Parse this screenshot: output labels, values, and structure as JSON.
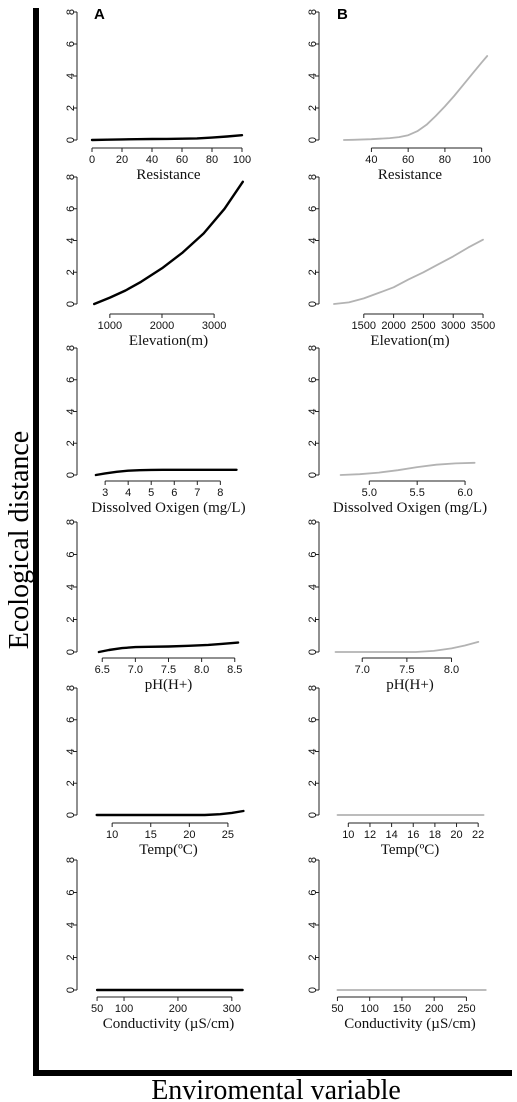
{
  "figure": {
    "ylabel": "Ecological distance",
    "xlabel": "Enviromental variable",
    "panel_labels": [
      "A",
      "B"
    ]
  },
  "chart_data": [
    {
      "panel": "A",
      "type": "line",
      "xlabel": "Resistance",
      "ylim": [
        0,
        8
      ],
      "yticks": [
        0,
        2,
        4,
        6,
        8
      ],
      "xlim": [
        -2,
        104
      ],
      "xticks": [
        0,
        20,
        40,
        60,
        80,
        100
      ],
      "line_color": "#000000",
      "x": [
        0,
        10,
        20,
        30,
        40,
        50,
        60,
        70,
        80,
        90,
        100
      ],
      "y": [
        0,
        0.02,
        0.04,
        0.05,
        0.06,
        0.07,
        0.08,
        0.1,
        0.15,
        0.22,
        0.3
      ]
    },
    {
      "panel": "B",
      "type": "line",
      "xlabel": "Resistance",
      "ylim": [
        0,
        8
      ],
      "yticks": [
        0,
        2,
        4,
        6,
        8
      ],
      "xlim": [
        18,
        104
      ],
      "xticks": [
        40,
        60,
        80,
        100
      ],
      "line_color": "#b3b3b3",
      "x": [
        25,
        30,
        40,
        50,
        55,
        60,
        65,
        70,
        75,
        80,
        85,
        90,
        95,
        100,
        103
      ],
      "y": [
        0,
        0.01,
        0.05,
        0.12,
        0.18,
        0.3,
        0.55,
        0.95,
        1.5,
        2.1,
        2.75,
        3.45,
        4.15,
        4.85,
        5.25
      ]
    },
    {
      "panel": "A",
      "type": "line",
      "xlabel": "Elevation(m)",
      "ylim": [
        0,
        8
      ],
      "yticks": [
        0,
        2,
        4,
        6,
        8
      ],
      "xlim": [
        600,
        3650
      ],
      "xticks": [
        1000,
        2000,
        3000
      ],
      "line_color": "#000000",
      "x": [
        700,
        1000,
        1300,
        1600,
        2000,
        2400,
        2800,
        3200,
        3550
      ],
      "y": [
        0,
        0.4,
        0.85,
        1.4,
        2.25,
        3.25,
        4.45,
        6.0,
        7.7
      ]
    },
    {
      "panel": "B",
      "type": "line",
      "xlabel": "Elevation(m)",
      "ylim": [
        0,
        8
      ],
      "yticks": [
        0,
        2,
        4,
        6,
        8
      ],
      "xlim": [
        950,
        3600
      ],
      "xticks": [
        1500,
        2000,
        2500,
        3000,
        3500
      ],
      "line_color": "#b3b3b3",
      "x": [
        1000,
        1250,
        1500,
        1750,
        2000,
        2250,
        2500,
        2750,
        3000,
        3250,
        3500
      ],
      "y": [
        0,
        0.1,
        0.35,
        0.7,
        1.05,
        1.55,
        2.0,
        2.5,
        3.0,
        3.55,
        4.05
      ]
    },
    {
      "panel": "A",
      "type": "line",
      "xlabel": "Dissolved Oxigen (mg/L)",
      "ylim": [
        0,
        8
      ],
      "yticks": [
        0,
        2,
        4,
        6,
        8
      ],
      "xlim": [
        2.3,
        9.2
      ],
      "xticks": [
        3,
        4,
        5,
        6,
        7,
        8
      ],
      "line_color": "#000000",
      "x": [
        2.6,
        3,
        3.5,
        4,
        4.5,
        5,
        5.5,
        6,
        7,
        8,
        8.7
      ],
      "y": [
        0,
        0.1,
        0.2,
        0.27,
        0.3,
        0.32,
        0.33,
        0.33,
        0.33,
        0.33,
        0.33
      ]
    },
    {
      "panel": "B",
      "type": "line",
      "xlabel": "Dissolved Oxigen (mg/L)",
      "ylim": [
        0,
        8
      ],
      "yticks": [
        0,
        2,
        4,
        6,
        8
      ],
      "xlim": [
        4.6,
        6.25
      ],
      "xticks": [
        5.0,
        5.5,
        6.0
      ],
      "line_color": "#b3b3b3",
      "x": [
        4.7,
        4.9,
        5.1,
        5.3,
        5.5,
        5.7,
        5.9,
        6.1
      ],
      "y": [
        0,
        0.05,
        0.15,
        0.3,
        0.5,
        0.65,
        0.73,
        0.77
      ]
    },
    {
      "panel": "A",
      "type": "line",
      "xlabel": "pH(H+)",
      "ylim": [
        0,
        8
      ],
      "yticks": [
        0,
        2,
        4,
        6,
        8
      ],
      "xlim": [
        6.3,
        8.7
      ],
      "xticks": [
        6.5,
        7.0,
        7.5,
        8.0,
        8.5
      ],
      "line_color": "#000000",
      "x": [
        6.45,
        6.6,
        6.8,
        7.0,
        7.2,
        7.5,
        7.8,
        8.1,
        8.3,
        8.55
      ],
      "y": [
        0,
        0.12,
        0.24,
        0.3,
        0.32,
        0.34,
        0.38,
        0.44,
        0.5,
        0.58
      ]
    },
    {
      "panel": "B",
      "type": "line",
      "xlabel": "pH(H+)",
      "ylim": [
        0,
        8
      ],
      "yticks": [
        0,
        2,
        4,
        6,
        8
      ],
      "xlim": [
        6.65,
        8.42
      ],
      "xticks": [
        7.0,
        7.5,
        8.0
      ],
      "line_color": "#b3b3b3",
      "x": [
        6.7,
        7.0,
        7.3,
        7.6,
        7.8,
        8.0,
        8.15,
        8.3
      ],
      "y": [
        0,
        0,
        0,
        0,
        0.07,
        0.22,
        0.4,
        0.62
      ]
    },
    {
      "panel": "A",
      "type": "line",
      "xlabel": "Temp(ºC)",
      "ylim": [
        0,
        8
      ],
      "yticks": [
        0,
        2,
        4,
        6,
        8
      ],
      "xlim": [
        7,
        27.6
      ],
      "xticks": [
        10,
        15,
        20,
        25
      ],
      "line_color": "#000000",
      "x": [
        8,
        12,
        16,
        20,
        22,
        24,
        25.5,
        27
      ],
      "y": [
        0,
        0,
        0,
        0,
        0,
        0.05,
        0.13,
        0.25
      ]
    },
    {
      "panel": "B",
      "type": "line",
      "xlabel": "Temp(ºC)",
      "ylim": [
        0,
        8
      ],
      "yticks": [
        0,
        2,
        4,
        6,
        8
      ],
      "xlim": [
        8.4,
        23
      ],
      "xticks": [
        10,
        12,
        14,
        16,
        18,
        20,
        22
      ],
      "line_color": "#b3b3b3",
      "x": [
        9,
        13,
        17,
        21,
        22.5
      ],
      "y": [
        0,
        0,
        0,
        0,
        0
      ]
    },
    {
      "panel": "A",
      "type": "line",
      "xlabel": "Conductivity (µS/cm)",
      "ylim": [
        0,
        8
      ],
      "yticks": [
        0,
        2,
        4,
        6,
        8
      ],
      "xlim": [
        35,
        330
      ],
      "xticks": [
        50,
        100,
        200,
        300
      ],
      "line_color": "#000000",
      "x": [
        50,
        100,
        150,
        200,
        250,
        300,
        320
      ],
      "y": [
        0,
        0,
        0,
        0,
        0,
        0,
        0
      ]
    },
    {
      "panel": "B",
      "type": "line",
      "xlabel": "Conductivity (µS/cm)",
      "ylim": [
        0,
        8
      ],
      "yticks": [
        0,
        2,
        4,
        6,
        8
      ],
      "xlim": [
        40,
        285
      ],
      "xticks": [
        50,
        100,
        150,
        200,
        250
      ],
      "line_color": "#b3b3b3",
      "x": [
        50,
        100,
        150,
        200,
        250,
        280
      ],
      "y": [
        0,
        0,
        0,
        0,
        0,
        0
      ]
    }
  ]
}
